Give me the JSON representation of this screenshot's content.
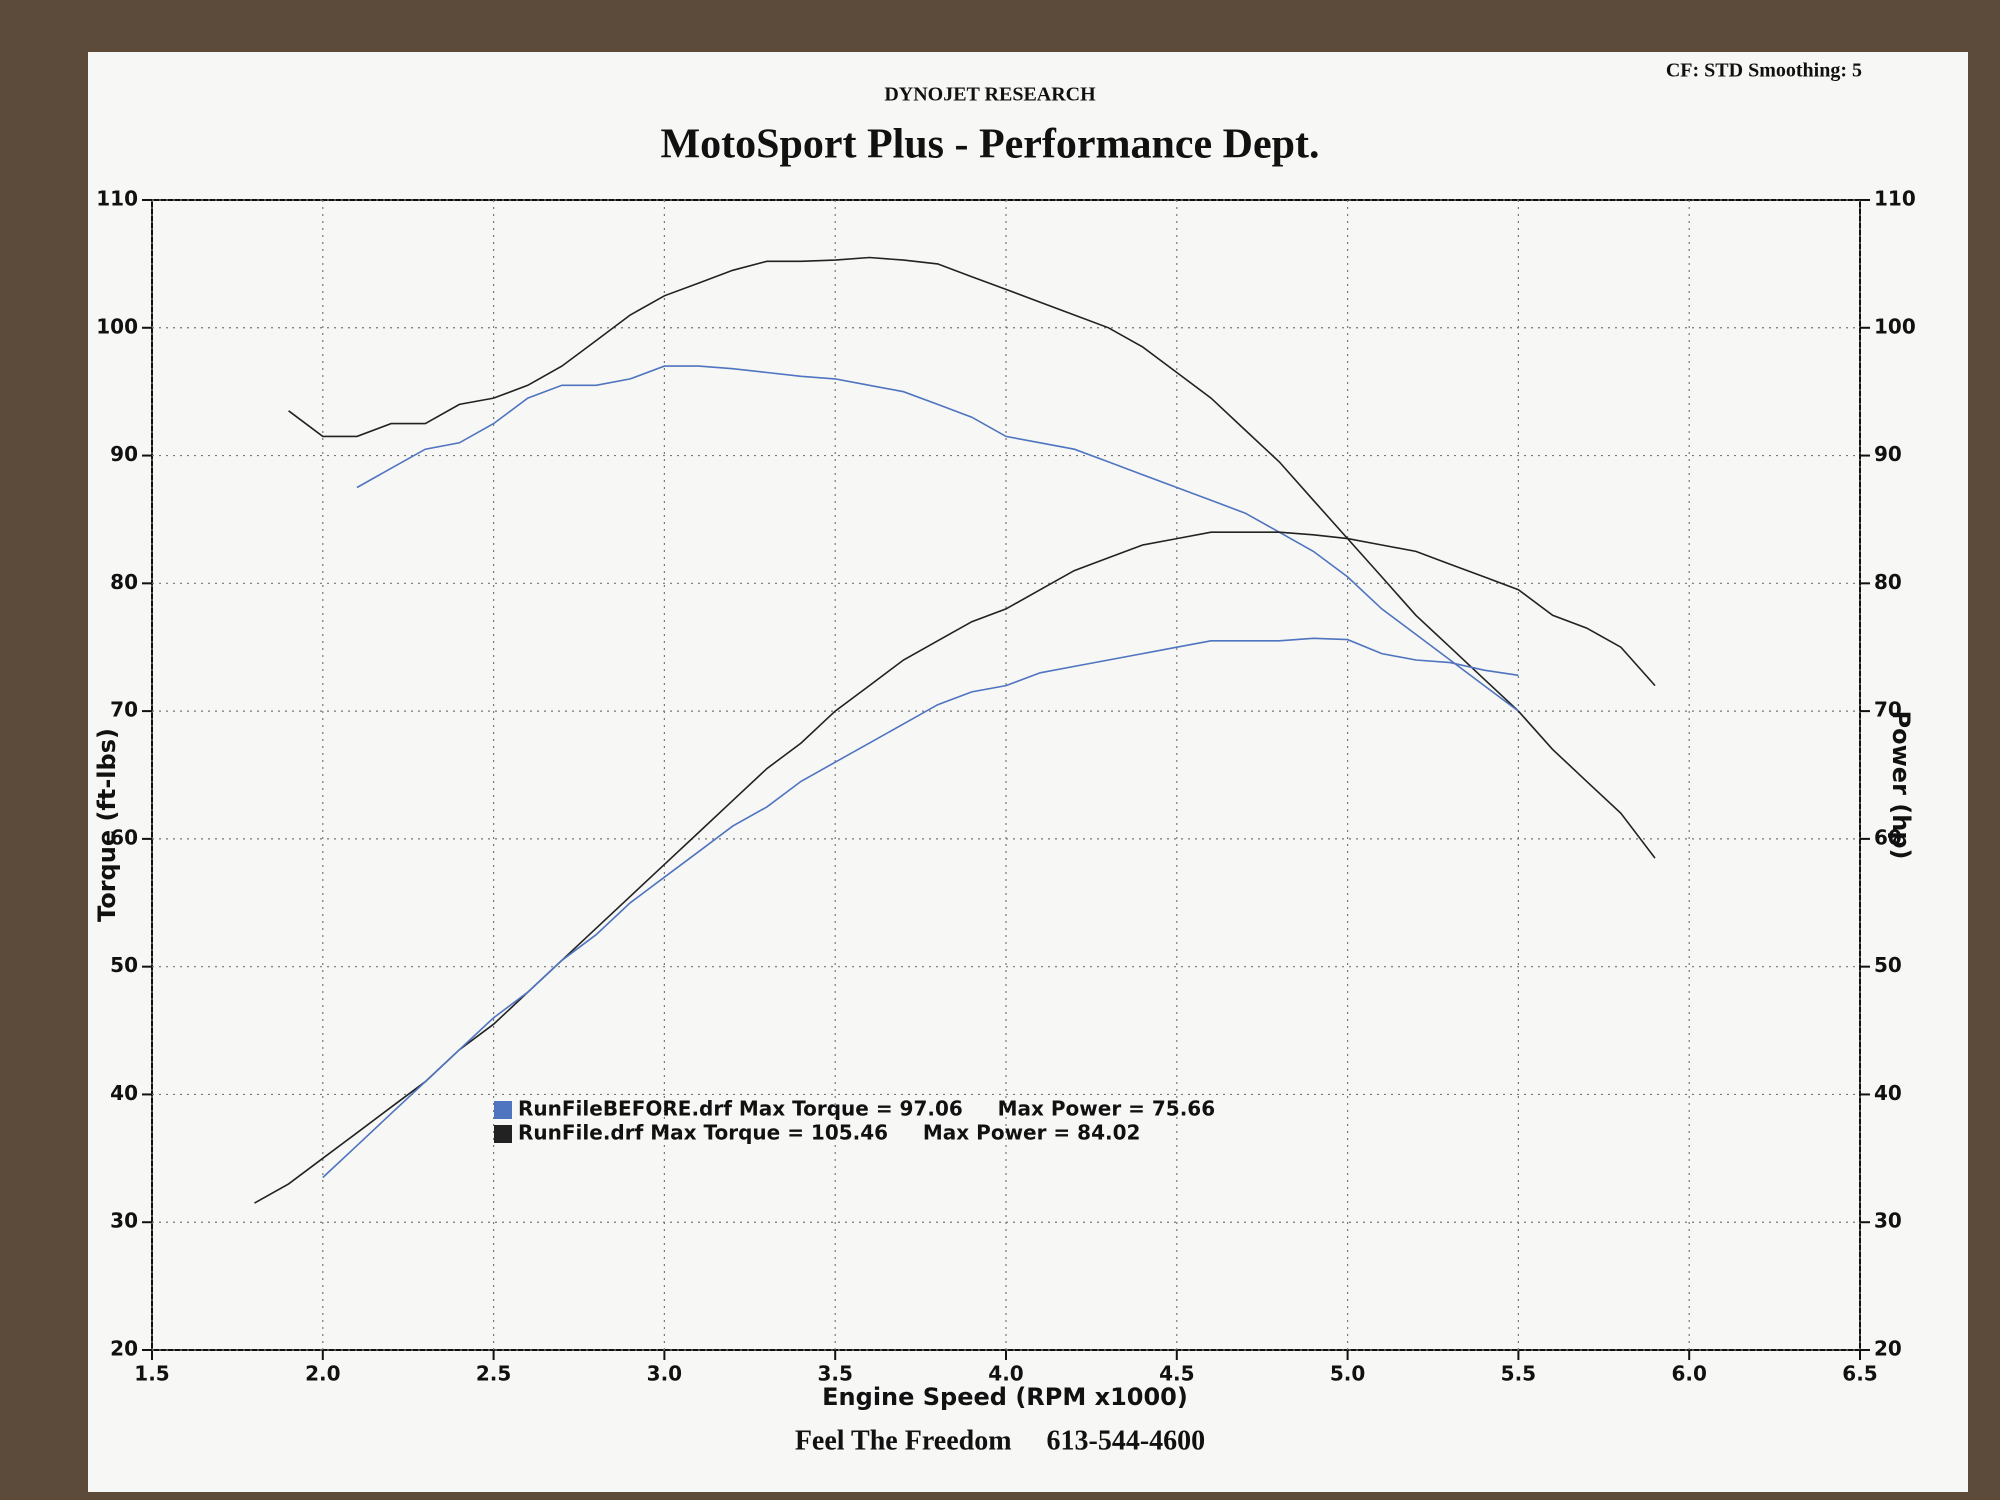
{
  "chart_data": {
    "type": "line",
    "header": "DYNOJET RESEARCH",
    "title": "MotoSport Plus  -  Performance Dept.",
    "note": "CF: STD  Smoothing: 5",
    "x_label": "Engine Speed (RPM x1000)",
    "y_label": "Torque (ft-lbs)",
    "y2_label": "Power (hp)",
    "footer": "Feel The Freedom     613-544-4600",
    "xlim": [
      1.5,
      6.5
    ],
    "xticks": [
      1.5,
      {
        "value": 2,
        "label": "2.0"
      },
      2.5,
      {
        "value": 3,
        "label": "3.0"
      },
      3.5,
      {
        "value": 4,
        "label": "4.0"
      },
      4.5,
      {
        "value": 5,
        "label": "5.0"
      },
      5.5,
      {
        "value": 6,
        "label": "6.0"
      },
      6.5
    ],
    "ylim": [
      20,
      110
    ],
    "yticks": [
      20,
      30,
      40,
      50,
      60,
      70,
      80,
      90,
      100,
      110
    ],
    "y2lim": [
      20,
      110
    ],
    "y2ticks": [
      20,
      30,
      40,
      50,
      60,
      70,
      80,
      90,
      100,
      110
    ],
    "grid": true,
    "legend": [
      {
        "label": "RunFileBEFORE.drf Max Torque = 97.06     Max Power = 75.66",
        "color": "#4f74c0"
      },
      {
        "label": "RunFile.drf Max Torque = 105.46     Max Power = 84.02",
        "color": "#222222"
      }
    ],
    "series": [
      {
        "color": "#222222",
        "axis": "y",
        "x": [
          1.9,
          2.0,
          2.1,
          2.2,
          2.3,
          2.4,
          2.5,
          2.6,
          2.7,
          2.8,
          2.9,
          3.0,
          3.1,
          3.2,
          3.3,
          3.4,
          3.5,
          3.6,
          3.7,
          3.8,
          3.9,
          4.0,
          4.1,
          4.2,
          4.3,
          4.4,
          4.5,
          4.6,
          4.7,
          4.8,
          4.9,
          5.0,
          5.1,
          5.2,
          5.3,
          5.4,
          5.5,
          5.6,
          5.7,
          5.8,
          5.9
        ],
        "values": [
          93.5,
          91.5,
          91.5,
          92.5,
          92.5,
          94,
          94.5,
          95.5,
          97,
          99,
          101,
          102.5,
          103.5,
          104.5,
          105.2,
          105.2,
          105.3,
          105.5,
          105.3,
          105,
          104,
          103,
          102,
          101,
          100,
          98.5,
          96.5,
          94.5,
          92,
          89.5,
          86.5,
          83.5,
          80.5,
          77.5,
          75,
          72.5,
          70,
          67,
          64.5,
          62,
          58.5
        ]
      },
      {
        "color": "#4f74c0",
        "axis": "y",
        "x": [
          2.1,
          2.2,
          2.3,
          2.4,
          2.5,
          2.6,
          2.7,
          2.8,
          2.9,
          3.0,
          3.1,
          3.2,
          3.3,
          3.4,
          3.5,
          3.6,
          3.7,
          3.8,
          3.9,
          4.0,
          4.1,
          4.2,
          4.3,
          4.4,
          4.5,
          4.6,
          4.7,
          4.8,
          4.9,
          5.0,
          5.1,
          5.2,
          5.3,
          5.4,
          5.5
        ],
        "values": [
          87.5,
          89,
          90.5,
          91,
          92.5,
          94.5,
          95.5,
          95.5,
          96,
          97,
          97,
          96.8,
          96.5,
          96.2,
          96,
          95.5,
          95,
          94,
          93,
          91.5,
          91,
          90.5,
          89.5,
          88.5,
          87.5,
          86.5,
          85.5,
          84,
          82.5,
          80.5,
          78,
          76,
          74,
          72,
          70
        ]
      },
      {
        "color": "#222222",
        "axis": "y2",
        "x": [
          1.8,
          1.9,
          2.0,
          2.1,
          2.2,
          2.3,
          2.4,
          2.5,
          2.6,
          2.7,
          2.8,
          2.9,
          3.0,
          3.1,
          3.2,
          3.3,
          3.4,
          3.5,
          3.6,
          3.7,
          3.8,
          3.9,
          4.0,
          4.1,
          4.2,
          4.3,
          4.4,
          4.5,
          4.6,
          4.7,
          4.8,
          4.9,
          5.0,
          5.1,
          5.2,
          5.3,
          5.4,
          5.5,
          5.6,
          5.7,
          5.8,
          5.9
        ],
        "values": [
          31.5,
          33,
          35,
          37,
          39,
          41,
          43.5,
          45.5,
          48,
          50.5,
          53,
          55.5,
          58,
          60.5,
          63,
          65.5,
          67.5,
          70,
          72,
          74,
          75.5,
          77,
          78,
          79.5,
          81,
          82,
          83,
          83.5,
          84,
          84,
          84,
          83.8,
          83.5,
          83,
          82.5,
          81.5,
          80.5,
          79.5,
          77.5,
          76.5,
          75,
          72
        ]
      },
      {
        "color": "#4f74c0",
        "axis": "y2",
        "x": [
          2.0,
          2.1,
          2.2,
          2.3,
          2.4,
          2.5,
          2.6,
          2.7,
          2.8,
          2.9,
          3.0,
          3.1,
          3.2,
          3.3,
          3.4,
          3.5,
          3.6,
          3.7,
          3.8,
          3.9,
          4.0,
          4.1,
          4.2,
          4.3,
          4.4,
          4.5,
          4.6,
          4.7,
          4.8,
          4.9,
          5.0,
          5.1,
          5.2,
          5.3,
          5.4,
          5.5
        ],
        "values": [
          33.5,
          36,
          38.5,
          41,
          43.5,
          46,
          48,
          50.5,
          52.5,
          55,
          57,
          59,
          61,
          62.5,
          64.5,
          66,
          67.5,
          69,
          70.5,
          71.5,
          72,
          73,
          73.5,
          74,
          74.5,
          75,
          75.5,
          75.5,
          75.5,
          75.7,
          75.6,
          74.5,
          74,
          73.8,
          73.2,
          72.8
        ]
      }
    ]
  }
}
